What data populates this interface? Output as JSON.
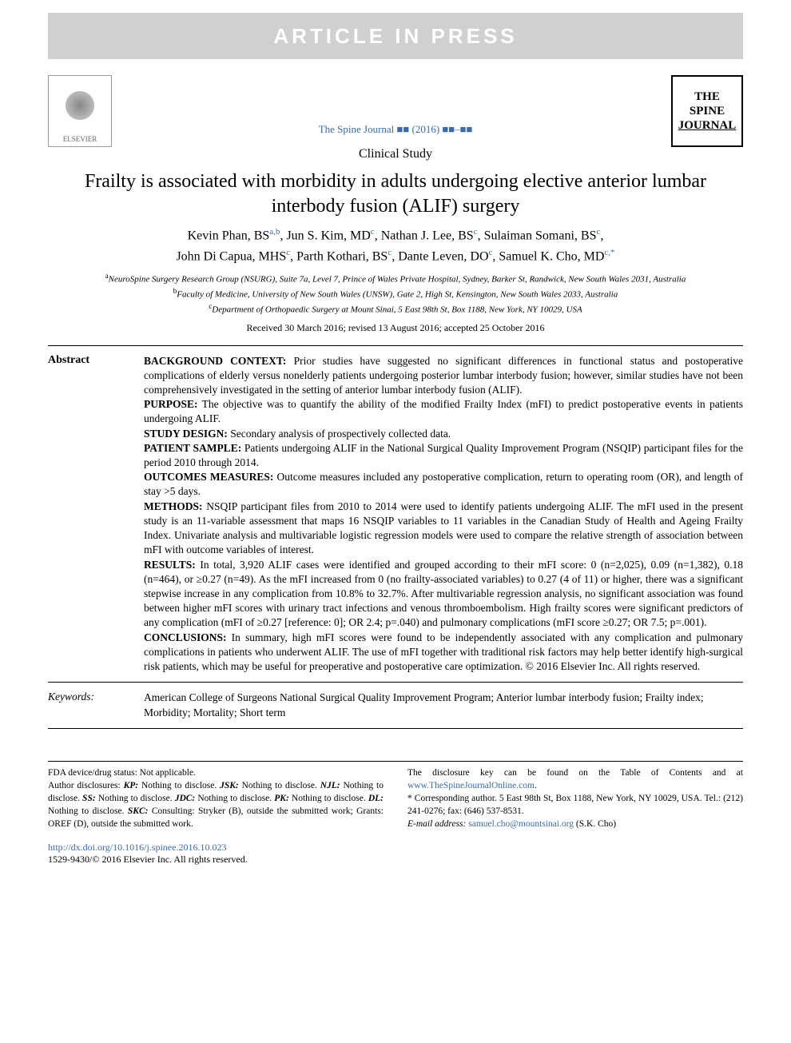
{
  "banner": {
    "text": "ARTICLE IN PRESS"
  },
  "header": {
    "citation": "The Spine Journal ■■ (2016) ■■–■■",
    "study_type": "Clinical Study",
    "logo1": "ELSEVIER",
    "logo2_l1": "THE",
    "logo2_l2": "SPINE",
    "logo2_l3": "JOURNAL"
  },
  "title": "Frailty is associated with morbidity in adults undergoing elective anterior lumbar interbody fusion (ALIF) surgery",
  "authors_line1": "Kevin Phan, BS",
  "authors_sup1": "a,b",
  "authors_line2": ", Jun S. Kim, MD",
  "authors_sup2": "c",
  "authors_line3": ", Nathan J. Lee, BS",
  "authors_sup3": "c",
  "authors_line4": ", Sulaiman Somani, BS",
  "authors_sup4": "c",
  "authors_line5": ",",
  "authors_line6": "John Di Capua, MHS",
  "authors_sup5": "c",
  "authors_line7": ", Parth Kothari, BS",
  "authors_sup6": "c",
  "authors_line8": ", Dante Leven, DO",
  "authors_sup7": "c",
  "authors_line9": ", Samuel K. Cho, MD",
  "authors_sup8": "c,",
  "authors_star": "*",
  "affiliations": {
    "a": "NeuroSpine Surgery Research Group (NSURG), Suite 7a, Level 7, Prince of Wales Private Hospital, Sydney, Barker St, Randwick, New South Wales 2031, Australia",
    "b": "Faculty of Medicine, University of New South Wales (UNSW), Gate 2, High St, Kensington, New South Wales 2033, Australia",
    "c": "Department of Orthopaedic Surgery at Mount Sinai, 5 East 98th St, Box 1188, New York, NY 10029, USA"
  },
  "dates": "Received 30 March 2016; revised 13 August 2016; accepted 25 October 2016",
  "abstract": {
    "label": "Abstract",
    "sections": [
      {
        "head": "BACKGROUND CONTEXT:",
        "text": " Prior studies have suggested no significant differences in functional status and postoperative complications of elderly versus nonelderly patients undergoing posterior lumbar interbody fusion; however, similar studies have not been comprehensively investigated in the setting of anterior lumbar interbody fusion (ALIF)."
      },
      {
        "head": "PURPOSE:",
        "text": " The objective was to quantify the ability of the modified Frailty Index (mFI) to predict postoperative events in patients undergoing ALIF."
      },
      {
        "head": "STUDY DESIGN:",
        "text": " Secondary analysis of prospectively collected data."
      },
      {
        "head": "PATIENT SAMPLE:",
        "text": " Patients undergoing ALIF in the National Surgical Quality Improvement Program (NSQIP) participant files for the period 2010 through 2014."
      },
      {
        "head": "OUTCOMES MEASURES:",
        "text": " Outcome measures included any postoperative complication, return to operating room (OR), and length of stay >5 days."
      },
      {
        "head": "METHODS:",
        "text": " NSQIP participant files from 2010 to 2014 were used to identify patients undergoing ALIF. The mFI used in the present study is an 11-variable assessment that maps 16 NSQIP variables to 11 variables in the Canadian Study of Health and Ageing Frailty Index. Univariate analysis and multivariable logistic regression models were used to compare the relative strength of association between mFI with outcome variables of interest."
      },
      {
        "head": "RESULTS:",
        "text": " In total, 3,920 ALIF cases were identified and grouped according to their mFI score: 0 (n=2,025), 0.09 (n=1,382), 0.18 (n=464), or ≥0.27 (n=49). As the mFI increased from 0 (no frailty-associated variables) to 0.27 (4 of 11) or higher, there was a significant stepwise increase in any complication from 10.8% to 32.7%. After multivariable regression analysis, no significant association was found between higher mFI scores with urinary tract infections and venous thromboembolism. High frailty scores were significant predictors of any complication (mFI of ≥0.27 [reference: 0]; OR 2.4; p=.040) and pulmonary complications (mFI score ≥0.27; OR 7.5; p=.001)."
      },
      {
        "head": "CONCLUSIONS:",
        "text": " In summary, high mFI scores were found to be independently associated with any complication and pulmonary complications in patients who underwent ALIF. The use of mFI together with traditional risk factors may help better identify high-surgical risk patients, which may be useful for preoperative and postoperative care optimization.  © 2016 Elsevier Inc. All rights reserved."
      }
    ]
  },
  "keywords": {
    "label": "Keywords:",
    "text": "American College of Surgeons National Surgical Quality Improvement Program; Anterior lumbar interbody fusion; Frailty index; Morbidity; Mortality; Short term"
  },
  "footer": {
    "fda": "FDA device/drug status: Not applicable.",
    "disclosures_lead": "Author disclosures: ",
    "disclosures": "KP: Nothing to disclose. JSK: Nothing to disclose. NJL: Nothing to disclose. SS: Nothing to disclose. JDC: Nothing to disclose. PK: Nothing to disclose. DL: Nothing to disclose. SKC: Consulting: Stryker (B), outside the submitted work; Grants: OREF (D), outside the submitted work.",
    "disclosure_key": "The disclosure key can be found on the Table of Contents and at ",
    "disclosure_link": "www.TheSpineJournalOnline.com",
    "corr_lead": "* Corresponding author. 5 East 98th St, Box 1188, New York, NY 10029, USA. Tel.: (212) 241-0276; fax: (646) 537-8531.",
    "email_label": "E-mail address: ",
    "email": "samuel.cho@mountsinai.org",
    "email_suffix": " (S.K. Cho)"
  },
  "doi": {
    "url": "http://dx.doi.org/10.1016/j.spinee.2016.10.023",
    "issn": "1529-9430/© 2016 Elsevier Inc. All rights reserved."
  }
}
